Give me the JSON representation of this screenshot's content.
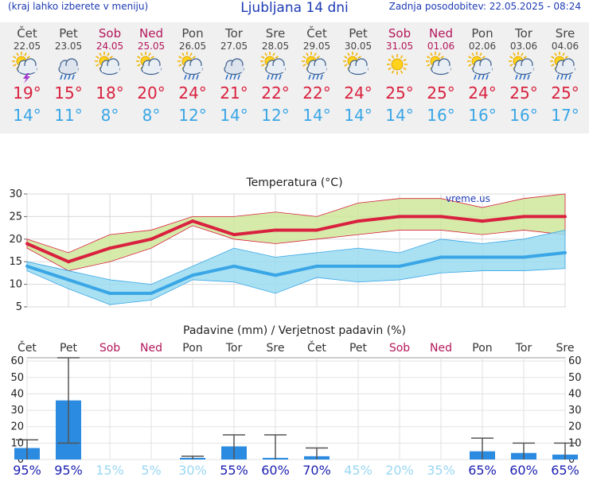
{
  "header": {
    "hint": "(kraj lahko izberete v meniju)",
    "title": "Ljubljana 14 dni",
    "updated": "Zadnja posodobitev: 22.05.2025 - 08:24"
  },
  "days": [
    {
      "name": "Čet",
      "date": "22.05",
      "weekend": false,
      "icon": "sun-cloud-thunder-icon",
      "max": "19",
      "min": "14"
    },
    {
      "name": "Pet",
      "date": "23.05",
      "weekend": false,
      "icon": "cloud-rain-icon",
      "max": "15",
      "min": "11"
    },
    {
      "name": "Sob",
      "date": "24.05",
      "weekend": true,
      "icon": "sun-cloud-icon",
      "max": "18",
      "min": "8"
    },
    {
      "name": "Ned",
      "date": "25.05",
      "weekend": true,
      "icon": "sun-cloud-icon",
      "max": "20",
      "min": "8"
    },
    {
      "name": "Pon",
      "date": "26.05",
      "weekend": false,
      "icon": "sun-cloud-rain-icon",
      "max": "24",
      "min": "12"
    },
    {
      "name": "Tor",
      "date": "27.05",
      "weekend": false,
      "icon": "cloud-rain-icon",
      "max": "21",
      "min": "14"
    },
    {
      "name": "Sre",
      "date": "28.05",
      "weekend": false,
      "icon": "sun-cloud-rain-icon",
      "max": "22",
      "min": "12"
    },
    {
      "name": "Čet",
      "date": "29.05",
      "weekend": false,
      "icon": "sun-cloud-rain-icon",
      "max": "22",
      "min": "14"
    },
    {
      "name": "Pet",
      "date": "30.05",
      "weekend": false,
      "icon": "sun-cloud-icon",
      "max": "24",
      "min": "14"
    },
    {
      "name": "Sob",
      "date": "31.05",
      "weekend": true,
      "icon": "sun-icon",
      "max": "25",
      "min": "14"
    },
    {
      "name": "Ned",
      "date": "01.06",
      "weekend": true,
      "icon": "sun-cloud-icon",
      "max": "25",
      "min": "16"
    },
    {
      "name": "Pon",
      "date": "02.06",
      "weekend": false,
      "icon": "sun-cloud-rain-icon",
      "max": "24",
      "min": "16"
    },
    {
      "name": "Tor",
      "date": "03.06",
      "weekend": false,
      "icon": "sun-cloud-rain-icon",
      "max": "25",
      "min": "16"
    },
    {
      "name": "Sre",
      "date": "04.06",
      "weekend": false,
      "icon": "sun-cloud-rain-icon",
      "max": "25",
      "min": "17"
    }
  ],
  "chart_data": [
    {
      "type": "line",
      "title": "Temperatura (°C)",
      "credit": "vreme.us",
      "ylim": [
        5,
        30
      ],
      "yticks": [
        5,
        10,
        15,
        20,
        25,
        30
      ],
      "grid": true,
      "colors": {
        "max": "#d9213f",
        "min": "#3aa6e6",
        "max_band": "#cfe79a",
        "min_band": "#9adcf0"
      },
      "series": [
        {
          "role": "max",
          "values": [
            19,
            15,
            18,
            20,
            24,
            21,
            22,
            22,
            24,
            25,
            25,
            24,
            25,
            25
          ],
          "upper": [
            20,
            17,
            21,
            22,
            25,
            25,
            26,
            25,
            28,
            29,
            29,
            27,
            29,
            30
          ],
          "lower": [
            18,
            13,
            15,
            18,
            23,
            20,
            19,
            20,
            21,
            22,
            22,
            21,
            22,
            21
          ]
        },
        {
          "role": "min",
          "values": [
            14,
            11,
            8,
            8,
            12,
            14,
            12,
            14,
            14,
            14,
            16,
            16,
            16,
            17
          ],
          "upper": [
            15,
            13,
            11,
            10,
            14,
            18,
            16,
            17,
            18,
            17,
            20,
            19,
            20,
            22
          ],
          "lower": [
            13,
            9,
            5.5,
            6.5,
            11,
            10.5,
            8,
            11.5,
            10.5,
            11,
            12.5,
            13,
            13,
            13.5
          ]
        }
      ]
    },
    {
      "type": "bar",
      "title": "Padavine (mm) / Verjetnost padavin (%)",
      "ylim": [
        0,
        62
      ],
      "yticks": [
        0,
        10,
        20,
        30,
        40,
        50,
        60
      ],
      "grid": true,
      "colors": {
        "bar": "#2b8be0",
        "whisker": "#555555",
        "prob_high": "#1a1fb0",
        "prob_low": "#9ad7f2"
      },
      "values": [
        7,
        36,
        0,
        0,
        1,
        8,
        1,
        2,
        0,
        0,
        0,
        5,
        4,
        3
      ],
      "err_low": [
        0,
        10,
        0,
        0,
        0,
        0,
        0,
        0,
        0,
        0,
        0,
        0,
        0,
        0
      ],
      "err_high": [
        12,
        62,
        0,
        0,
        2,
        15,
        15,
        7,
        0,
        0,
        0,
        13,
        10,
        10
      ],
      "probability": [
        "95%",
        "95%",
        "15%",
        "5%",
        "30%",
        "55%",
        "60%",
        "70%",
        "45%",
        "20%",
        "35%",
        "65%",
        "60%",
        "65%"
      ]
    }
  ]
}
